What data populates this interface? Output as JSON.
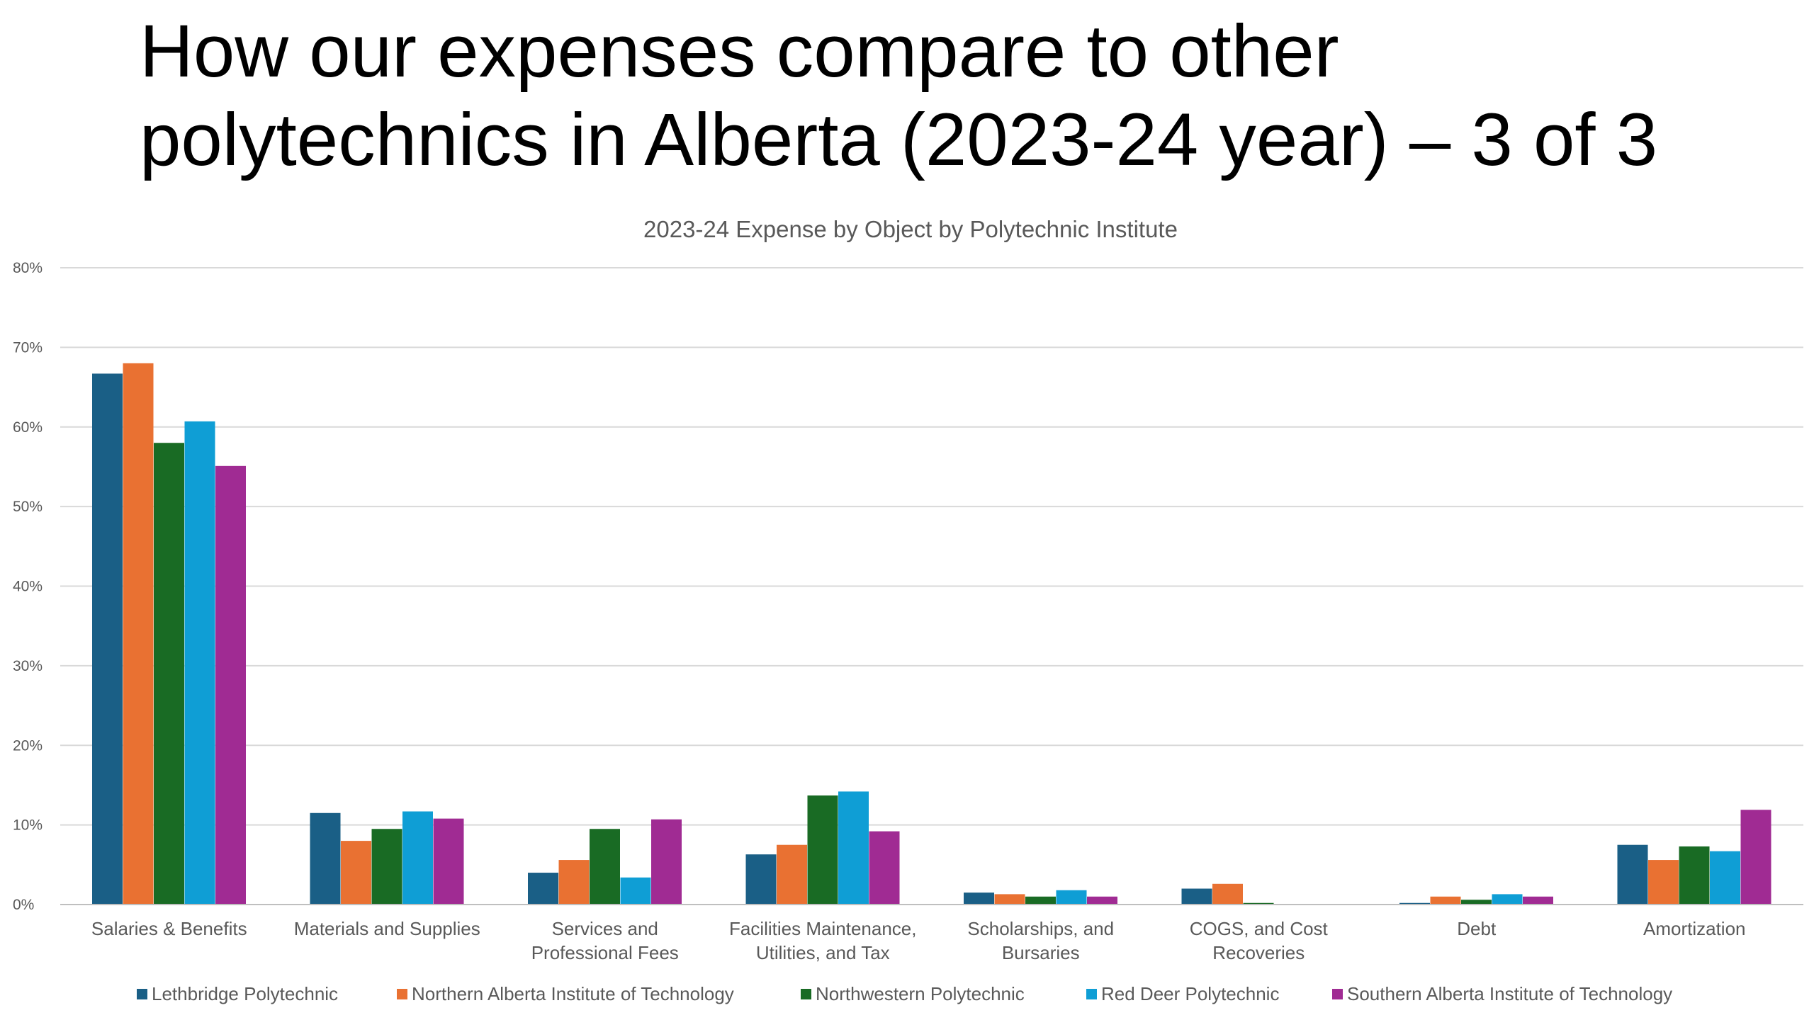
{
  "slide": {
    "title_line1": "How our expenses compare to other",
    "title_line2": "polytechnics in Alberta (2023-24 year) – 3 of 3"
  },
  "chart_data": {
    "type": "bar",
    "title": "2023-24 Expense by Object by Polytechnic Institute",
    "xlabel": "",
    "ylabel": "",
    "ylim": [
      0,
      80
    ],
    "yticks": [
      0,
      10,
      20,
      30,
      40,
      50,
      60,
      70,
      80
    ],
    "ytick_labels": [
      "0%",
      "10%",
      "20%",
      "30%",
      "40%",
      "50%",
      "60%",
      "70%",
      "80%"
    ],
    "grid": true,
    "legend_position": "bottom",
    "categories": [
      [
        "Salaries & Benefits"
      ],
      [
        "Materials and Supplies"
      ],
      [
        "Services and",
        "Professional Fees"
      ],
      [
        "Facilities Maintenance,",
        "Utilities, and Tax"
      ],
      [
        "Scholarships, and",
        "Bursaries"
      ],
      [
        "COGS, and Cost",
        "Recoveries"
      ],
      [
        "Debt"
      ],
      [
        "Amortization"
      ]
    ],
    "series": [
      {
        "name": "Lethbridge Polytechnic",
        "color": "#1a5f86",
        "values": [
          66.7,
          11.5,
          4.0,
          6.3,
          1.5,
          2.0,
          0.2,
          7.5
        ]
      },
      {
        "name": "Northern Alberta Institute of Technology",
        "color": "#e97132",
        "values": [
          68.0,
          8.0,
          5.6,
          7.5,
          1.3,
          2.6,
          1.0,
          5.6
        ]
      },
      {
        "name": "Northwestern Polytechnic",
        "color": "#196b24",
        "values": [
          58.0,
          9.5,
          9.5,
          13.7,
          1.0,
          0.2,
          0.6,
          7.3
        ]
      },
      {
        "name": "Red Deer Polytechnic",
        "color": "#0f9ed5",
        "values": [
          60.7,
          11.7,
          3.4,
          14.2,
          1.8,
          0.0,
          1.3,
          6.7
        ]
      },
      {
        "name": "Southern Alberta Institute of Technology",
        "color": "#a02b93",
        "values": [
          55.1,
          10.8,
          10.7,
          9.2,
          1.0,
          0.0,
          1.0,
          11.9
        ]
      }
    ]
  }
}
